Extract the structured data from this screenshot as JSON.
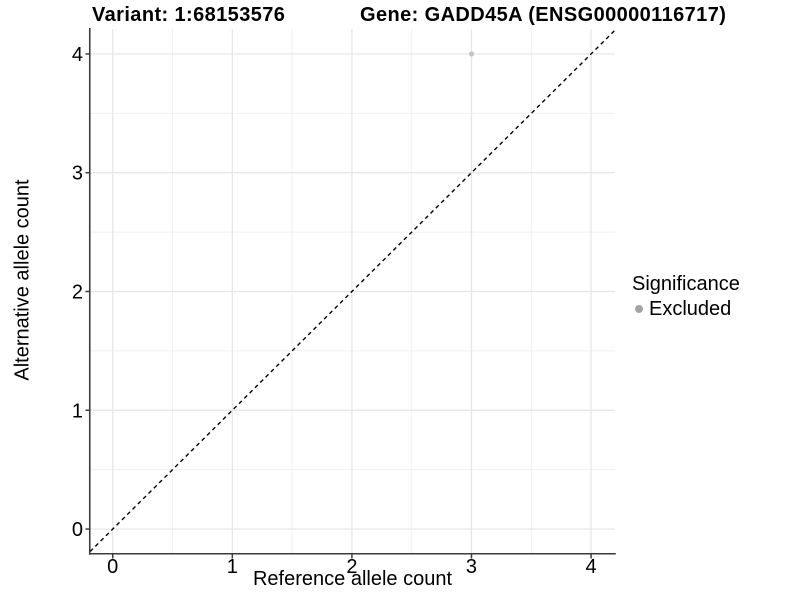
{
  "header": {
    "variant_title": "Variant: 1:68153576",
    "gene_title": "Gene: GADD45A (ENSG00000116717)"
  },
  "chart_data": {
    "type": "scatter",
    "xlabel": "Reference allele count",
    "ylabel": "Alternative allele count",
    "x_ticks": [
      0,
      1,
      2,
      3,
      4
    ],
    "y_ticks": [
      0,
      1,
      2,
      3,
      4
    ],
    "x_minor_ticks": [
      0.5,
      1.5,
      2.5,
      3.5
    ],
    "y_minor_ticks": [
      0.5,
      1.5,
      2.5,
      3.5
    ],
    "xlim": [
      -0.19,
      4.2
    ],
    "ylim": [
      -0.21,
      4.21
    ],
    "grid": true,
    "series": [
      {
        "name": "Excluded",
        "color": "#c4c4c4",
        "points": [
          {
            "x": 3,
            "y": 4
          }
        ]
      }
    ],
    "reference_line": {
      "slope": 1,
      "intercept": 0,
      "style": "dashed",
      "color": "#000000"
    },
    "legend": {
      "title": "Significance",
      "position": "right",
      "items": [
        {
          "label": "Excluded",
          "color": "#a4a4a4"
        }
      ]
    }
  },
  "colors": {
    "grid_major": "#e5e5e5",
    "grid_minor": "#f0f0f0",
    "axis_line": "#3c3c3c",
    "tick_mark": "#3c3c3c",
    "tick_text": "#000000"
  }
}
